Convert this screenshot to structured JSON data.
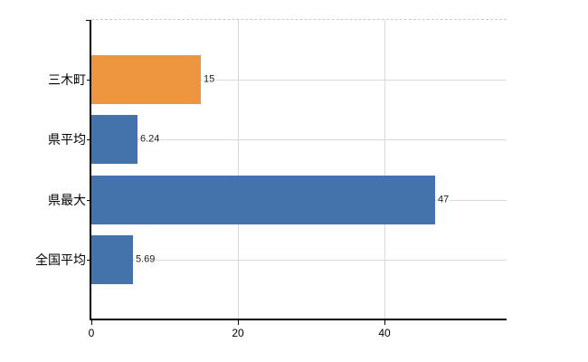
{
  "chart_data": {
    "type": "bar",
    "orientation": "horizontal",
    "title": "",
    "xlabel": "",
    "ylabel": "",
    "categories": [
      "三木町",
      "県平均",
      "県最大",
      "全国平均"
    ],
    "values": [
      15,
      6.24,
      47,
      5.69
    ],
    "value_labels": [
      "15",
      "6.24",
      "47",
      "5.69"
    ],
    "bar_colors": [
      "#EE9540",
      "#4472AB",
      "#4472AB",
      "#4472AB"
    ],
    "x_ticks": [
      {
        "value": 0,
        "label": "0"
      },
      {
        "value": 20,
        "label": "20"
      },
      {
        "value": 40,
        "label": "40"
      }
    ],
    "xlim": [
      0,
      56.7
    ],
    "grid": true,
    "legend_position": "none",
    "colors": {
      "highlight_bar": "#EE9540",
      "default_bar": "#4472AB",
      "gridline": "#D5DBD2",
      "top_border_dashed": "#CBCBCB",
      "axis": "#000000",
      "category_text": "#000000",
      "value_text": "#1A1A1A",
      "background": "#FFFFFF"
    }
  }
}
